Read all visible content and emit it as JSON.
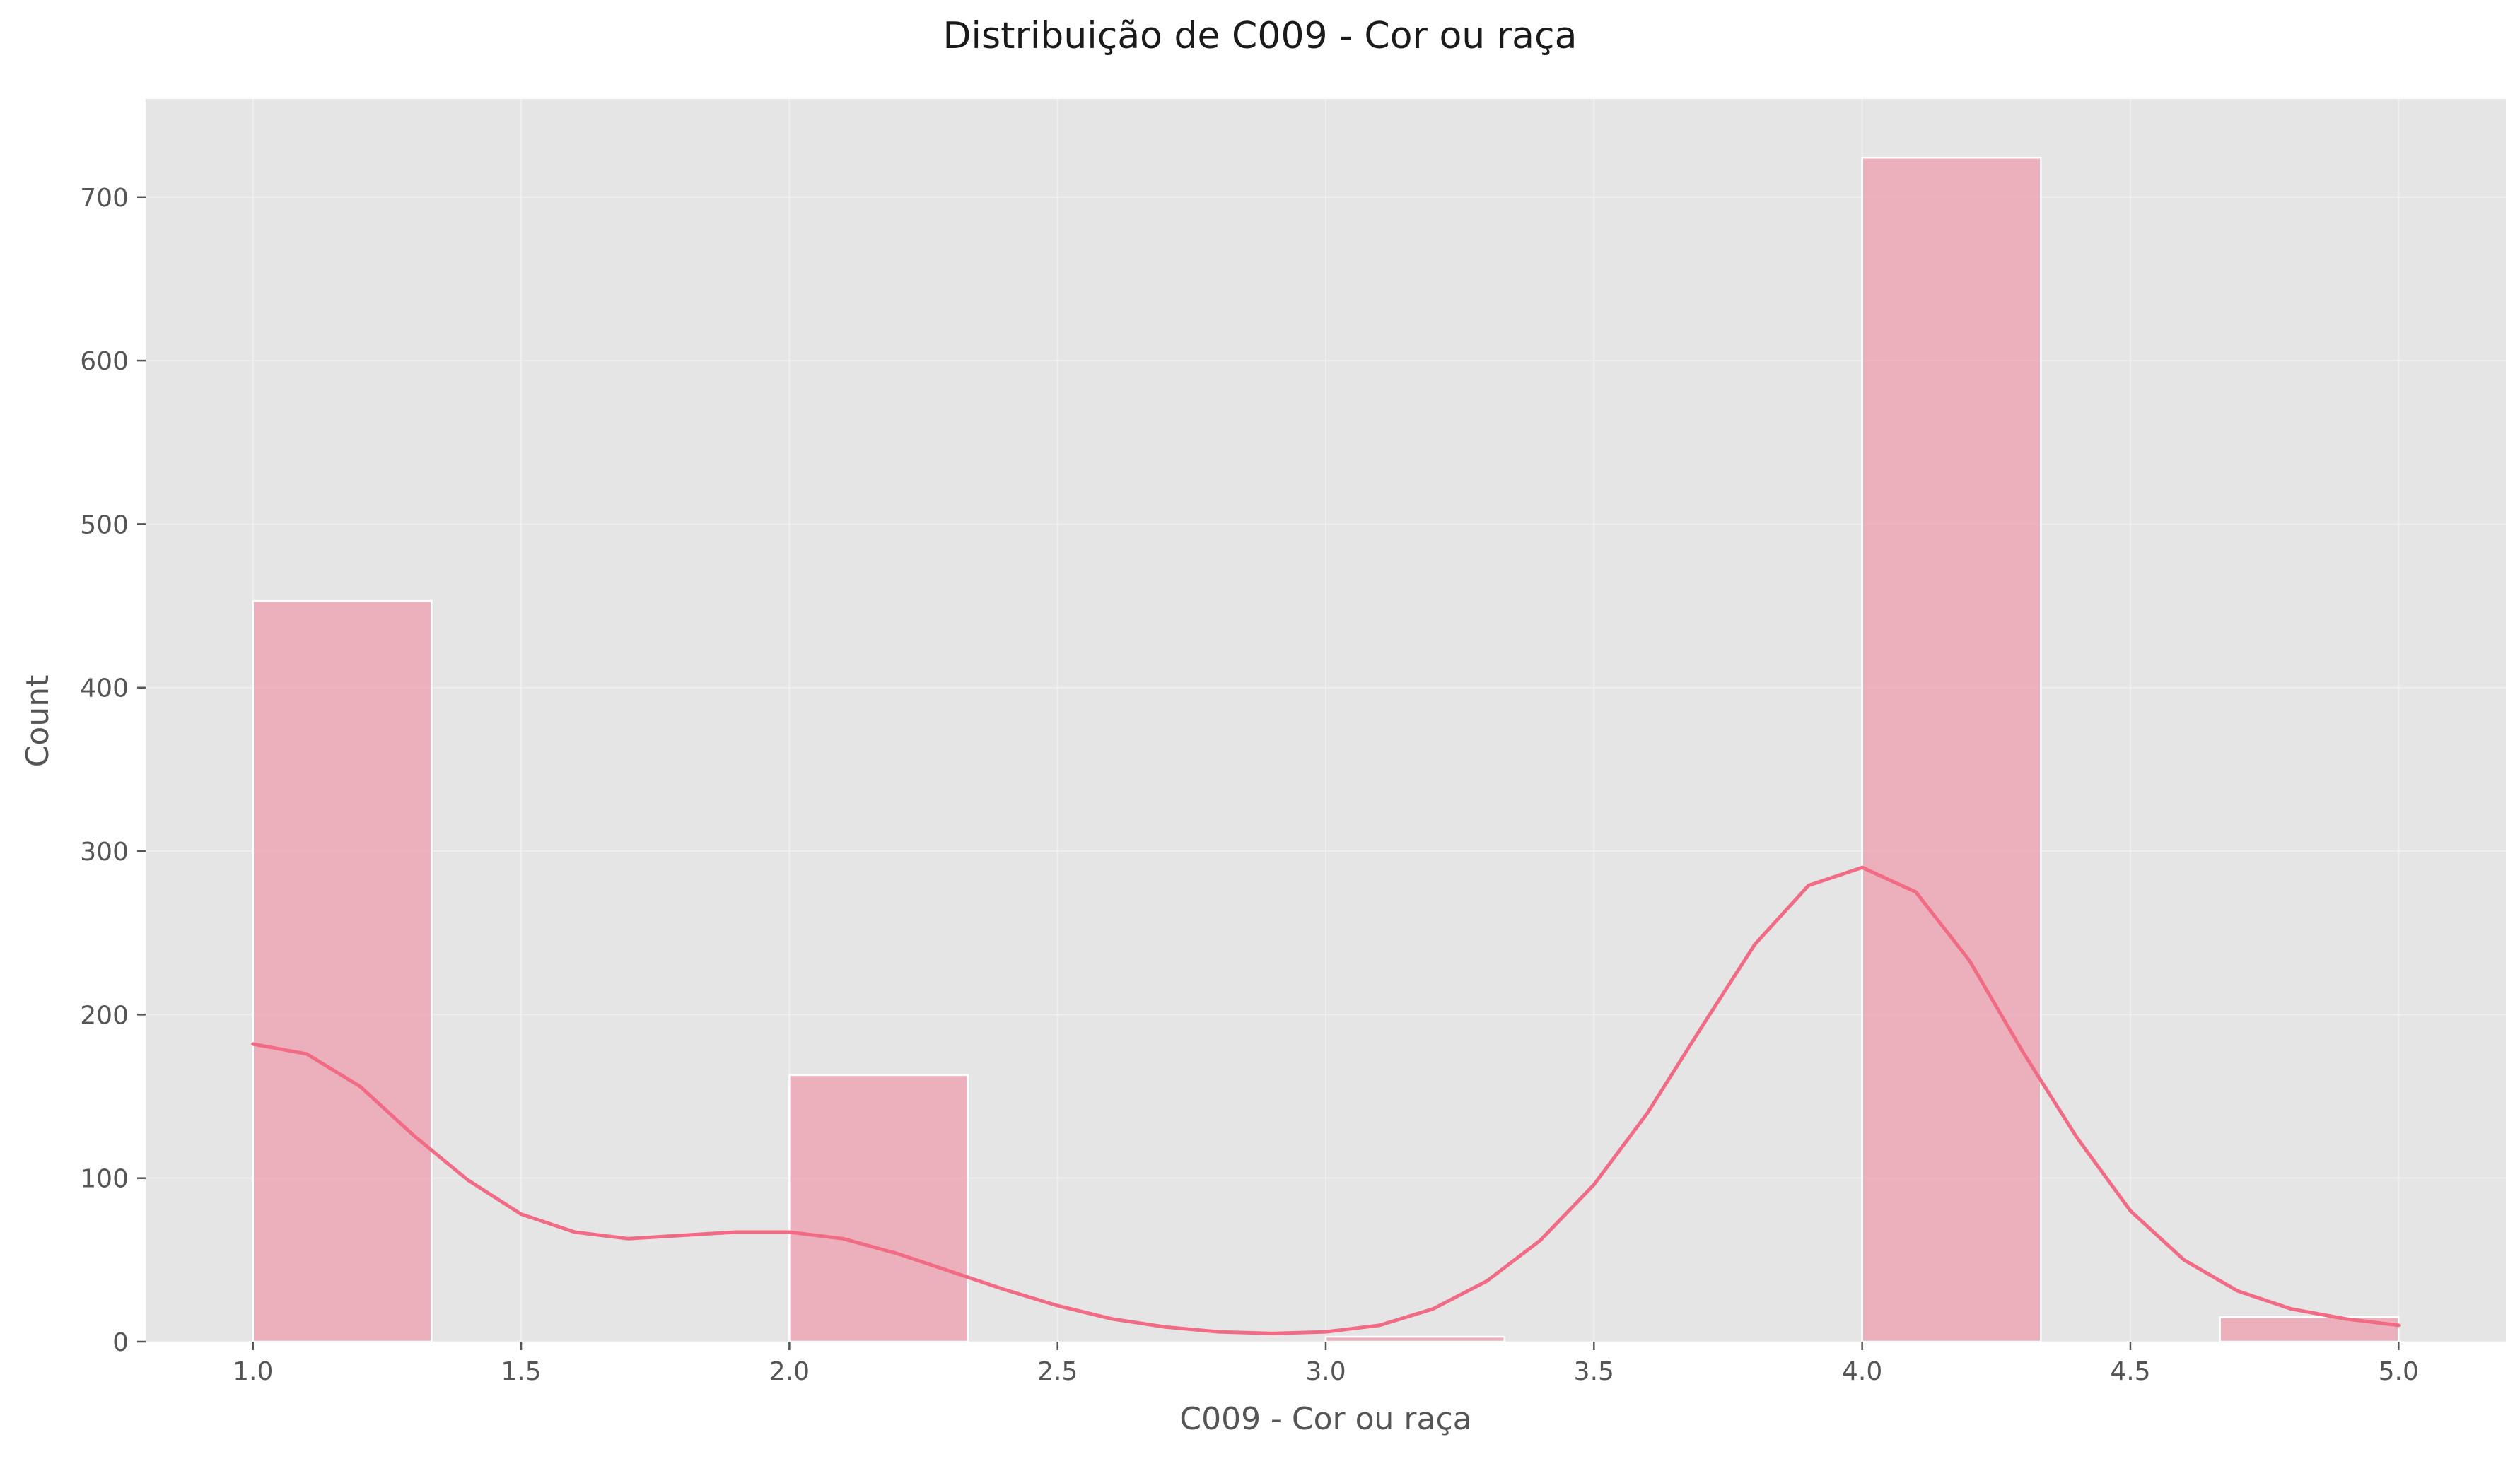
{
  "chart_data": {
    "type": "bar",
    "subtype": "histogram-with-kde",
    "title": "Distribuição de C009 - Cor ou raça",
    "xlabel": "C009 - Cor ou raça",
    "ylabel": "Count",
    "xlim": [
      0.8,
      5.2
    ],
    "ylim": [
      0,
      760
    ],
    "grid": true,
    "legend": "none",
    "colors": {
      "bar": "#f08aa0",
      "line": "#f26b85",
      "background": "#e5e5e5"
    },
    "x_ticks": [
      "1.0",
      "1.5",
      "2.0",
      "2.5",
      "3.0",
      "3.5",
      "4.0",
      "4.5",
      "5.0"
    ],
    "x_tick_values": [
      1.0,
      1.5,
      2.0,
      2.5,
      3.0,
      3.5,
      4.0,
      4.5,
      5.0
    ],
    "y_ticks": [
      "0",
      "100",
      "200",
      "300",
      "400",
      "500",
      "600",
      "700"
    ],
    "y_tick_values": [
      0,
      100,
      200,
      300,
      400,
      500,
      600,
      700
    ],
    "bins": [
      {
        "x0": 1.0,
        "x1": 1.333,
        "count": 453
      },
      {
        "x0": 1.333,
        "x1": 1.667,
        "count": 0
      },
      {
        "x0": 1.667,
        "x1": 2.0,
        "count": 0
      },
      {
        "x0": 2.0,
        "x1": 2.333,
        "count": 163
      },
      {
        "x0": 2.333,
        "x1": 2.667,
        "count": 0
      },
      {
        "x0": 2.667,
        "x1": 3.0,
        "count": 0
      },
      {
        "x0": 3.0,
        "x1": 3.333,
        "count": 3
      },
      {
        "x0": 3.333,
        "x1": 3.667,
        "count": 0
      },
      {
        "x0": 3.667,
        "x1": 4.0,
        "count": 0
      },
      {
        "x0": 4.0,
        "x1": 4.333,
        "count": 724
      },
      {
        "x0": 4.333,
        "x1": 4.667,
        "count": 0
      },
      {
        "x0": 4.667,
        "x1": 5.0,
        "count": 15
      }
    ],
    "kde": {
      "x": [
        1.0,
        1.1,
        1.2,
        1.3,
        1.4,
        1.5,
        1.6,
        1.7,
        1.8,
        1.9,
        2.0,
        2.1,
        2.2,
        2.3,
        2.4,
        2.5,
        2.6,
        2.7,
        2.8,
        2.9,
        3.0,
        3.1,
        3.2,
        3.3,
        3.4,
        3.5,
        3.6,
        3.7,
        3.8,
        3.9,
        4.0,
        4.1,
        4.2,
        4.3,
        4.4,
        4.5,
        4.6,
        4.7,
        4.8,
        4.9,
        5.0
      ],
      "y": [
        182,
        176,
        156,
        126,
        99,
        78,
        67,
        63,
        65,
        67,
        67,
        63,
        54,
        43,
        32,
        22,
        14,
        9,
        6,
        5,
        6,
        10,
        20,
        37,
        62,
        96,
        140,
        192,
        243,
        279,
        290,
        275,
        233,
        177,
        125,
        80,
        50,
        31,
        20,
        14,
        10
      ]
    }
  }
}
